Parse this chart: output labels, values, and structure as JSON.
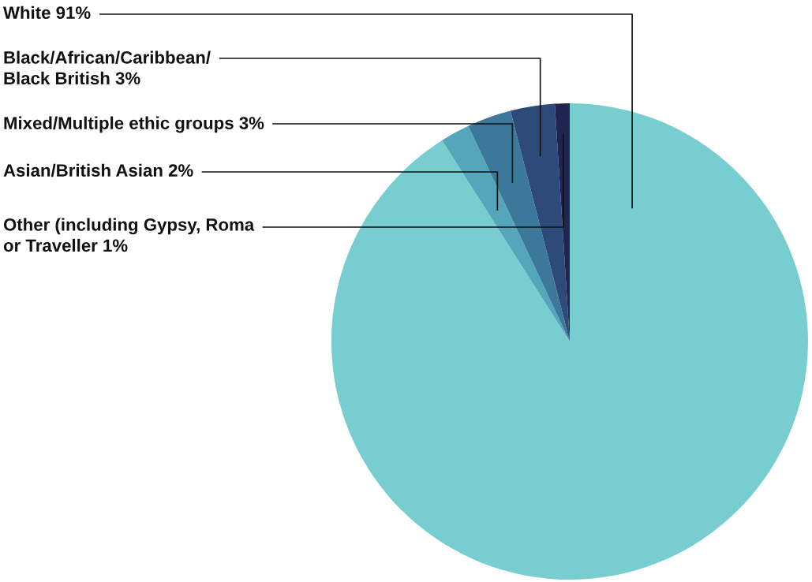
{
  "chart_data": {
    "type": "pie",
    "categories": [
      "White 91%",
      "Asian/British Asian 2%",
      "Mixed/Multiple ethic groups 3%",
      "Black/African/Caribbean/\nBlack British 3%",
      "Other (including Gypsy, Roma\nor Traveller 1%"
    ],
    "values": [
      91,
      2,
      3,
      3,
      1
    ],
    "colors": [
      "#78cdd1",
      "#55a6bb",
      "#3b7899",
      "#2d4a78",
      "#1f2550"
    ]
  }
}
